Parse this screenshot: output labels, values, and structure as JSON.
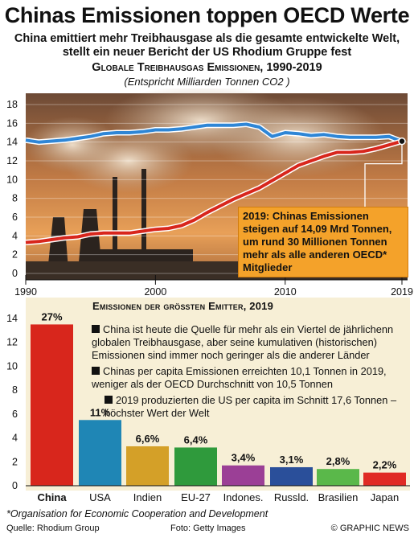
{
  "header": {
    "headline": "Chinas Emissionen toppen OECD Werte",
    "subhead_line1": "China emittiert mehr Treibhausgase als die gesamte entwickelte Welt,",
    "subhead_line2": "stellt ein neuer Bericht der US Rhodium Gruppe fest",
    "chart_title": "Globale Treibhausgas Emissionen, 1990-2019",
    "chart_subtitle": "(Entspricht Milliarden Tonnen CO2 )"
  },
  "callout": {
    "line1": "2019: Chinas Emissionen",
    "line2": "steigen auf 14,09 Mrd Tonnen,",
    "line3": "um rund 30 Millionen Tonnen",
    "line4": "mehr als alle anderen OECD*",
    "line5": "Mitglieder"
  },
  "bar_panel": {
    "title": "Emissionen der größten Emitter, 2019",
    "facts": [
      "China ist heute die Quelle für mehr als ein Viertel de jährlichenn globalen Treibhausgase, aber seine kumulativen (historischen) Emissionen sind immer noch geringer als die anderer Länder",
      "Chinas per capita Emissionen erreichten 10,1 Tonnen in 2019, weniger als der OECD Durchschnitt von 10,5 Tonnen",
      "2019 produzierten die US per capita im Schnitt 17,6 Tonnen –höchster Wert der Welt"
    ]
  },
  "footer": {
    "footnote": "*Organisation for Economic Cooperation and Development",
    "source": "Quelle: Rhodium Group",
    "photo": "Foto: Getty Images",
    "credit": "© GRAPHIC NEWS"
  },
  "colors": {
    "oecd_line": "#2e86d6",
    "china_line": "#d8261c",
    "callout_bg": "#f4a22a",
    "panel_bg": "#f7efd6"
  },
  "chart_data": [
    {
      "type": "line",
      "title": "Globale Treibhausgas Emissionen, 1990-2019",
      "subtitle": "(Entspricht Milliarden Tonnen CO2 )",
      "xlim": [
        1990,
        2019
      ],
      "ylim": [
        0,
        18
      ],
      "x_ticks": [
        "1990",
        "2000",
        "2010",
        "2019"
      ],
      "y_ticks": [
        "0",
        "2",
        "4",
        "6",
        "8",
        "10",
        "12",
        "14",
        "16",
        "18"
      ],
      "grid": "horizontal",
      "x": [
        1990,
        1991,
        1992,
        1993,
        1994,
        1995,
        1996,
        1997,
        1998,
        1999,
        2000,
        2001,
        2002,
        2003,
        2004,
        2005,
        2006,
        2007,
        2008,
        2009,
        2010,
        2011,
        2012,
        2013,
        2014,
        2015,
        2016,
        2017,
        2018,
        2019
      ],
      "series": [
        {
          "values": [
            14.2,
            14.0,
            14.1,
            14.2,
            14.4,
            14.6,
            14.9,
            15.0,
            15.0,
            15.1,
            15.3,
            15.3,
            15.4,
            15.6,
            15.8,
            15.8,
            15.8,
            15.9,
            15.6,
            14.6,
            15.0,
            14.9,
            14.7,
            14.8,
            14.6,
            14.5,
            14.5,
            14.5,
            14.6,
            14.06
          ]
        },
        {
          "values": [
            3.3,
            3.4,
            3.6,
            3.8,
            3.9,
            4.2,
            4.3,
            4.3,
            4.3,
            4.5,
            4.7,
            4.8,
            5.1,
            5.7,
            6.5,
            7.2,
            7.9,
            8.5,
            9.1,
            9.9,
            10.7,
            11.5,
            12.0,
            12.5,
            12.9,
            12.9,
            13.0,
            13.3,
            13.7,
            14.09
          ]
        }
      ]
    },
    {
      "type": "bar",
      "title": "Emissionen der größten Emitter, 2019",
      "categories": [
        "China",
        "USA",
        "Indien",
        "EU-27",
        "Indones.",
        "Russld.",
        "Brasilien",
        "Japan"
      ],
      "values": [
        27,
        11,
        6.6,
        6.4,
        3.4,
        3.1,
        2.8,
        2.2
      ],
      "value_labels": [
        "27%",
        "11%",
        "6,6%",
        "6,4%",
        "3,4%",
        "3,1%",
        "2,8%",
        "2,2%"
      ],
      "colors": [
        "#d8261c",
        "#1f86b5",
        "#d4a028",
        "#2f9a3c",
        "#9b3f96",
        "#2a4f9a",
        "#5ab84a",
        "#e02a24"
      ],
      "ylim": [
        0,
        14
      ],
      "y_ticks": [
        "0",
        "2",
        "4",
        "6",
        "8",
        "10",
        "12",
        "14"
      ],
      "axis_scale": "percent value shown at half-scale (27% = top of axis 14)"
    }
  ]
}
